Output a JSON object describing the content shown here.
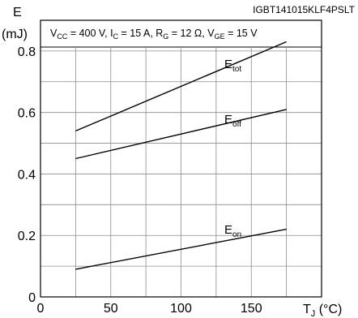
{
  "chart_data": {
    "type": "line",
    "part_number": "IGBT141015KLF4PSLT",
    "conditions": {
      "vcc": {
        "main": "V",
        "sub": "CC",
        "value": " = 400 V, "
      },
      "ic": {
        "main": "I",
        "sub": "C",
        "value": " = 15 A, "
      },
      "rg": {
        "main": "R",
        "sub": "G",
        "value": " = 12 Ω, "
      },
      "vge": {
        "main": "V",
        "sub": "GE",
        "value": " = 15 V"
      }
    },
    "ylabel": {
      "main": "E",
      "unit": "(mJ)"
    },
    "xlabel": {
      "main": "T",
      "sub": "J",
      "unit": " (°C)"
    },
    "xlim": [
      0,
      200
    ],
    "ylim": [
      0,
      0.9
    ],
    "x_ticks": [
      0,
      50,
      100,
      150
    ],
    "x_tick_labels": [
      "0",
      "50",
      "100",
      "150"
    ],
    "y_ticks": [
      0,
      0.2,
      0.4,
      0.6,
      0.8
    ],
    "y_tick_labels": [
      "0",
      "0.2",
      "0.4",
      "0.6",
      "0.8"
    ],
    "x_grid": [
      25,
      50,
      75,
      100,
      125,
      150,
      175
    ],
    "y_grid": [
      0.1,
      0.2,
      0.3,
      0.4,
      0.5,
      0.6,
      0.7,
      0.8
    ],
    "grid": true,
    "series": [
      {
        "key": "etot",
        "label_main": "E",
        "label_sub": "tot",
        "x": [
          25,
          175
        ],
        "y": [
          0.54,
          0.83
        ]
      },
      {
        "key": "eoff",
        "label_main": "E",
        "label_sub": "off",
        "x": [
          25,
          175
        ],
        "y": [
          0.45,
          0.61
        ]
      },
      {
        "key": "eon",
        "label_main": "E",
        "label_sub": "on",
        "x": [
          25,
          175
        ],
        "y": [
          0.09,
          0.22
        ]
      }
    ]
  }
}
